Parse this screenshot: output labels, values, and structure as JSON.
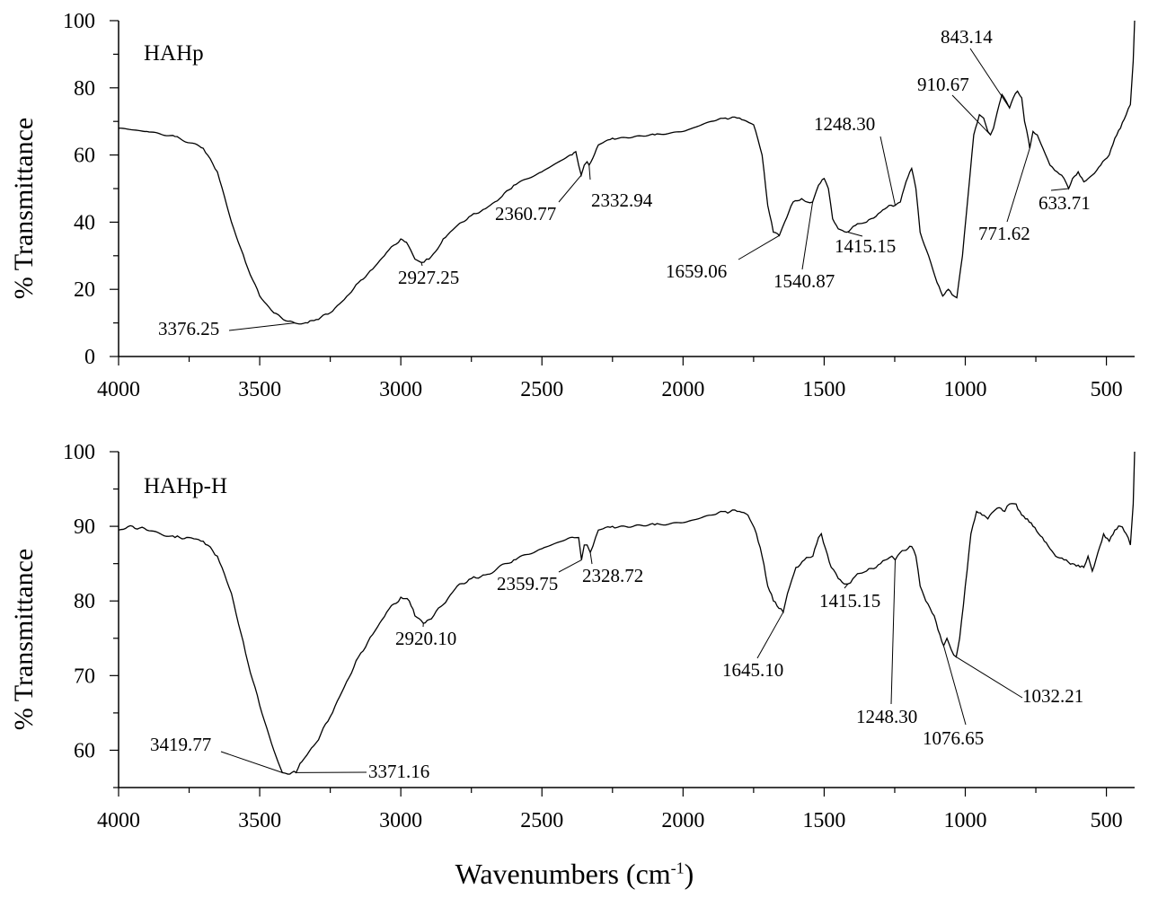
{
  "chart_data": [
    {
      "type": "line",
      "panel_label": "HAHp",
      "ylabel": "% Transmittance",
      "xlabel": "Wavenumbers (cm-1)",
      "xlim": [
        4000,
        400
      ],
      "ylim": [
        0,
        100
      ],
      "x_ticks": [
        4000,
        3500,
        3000,
        2500,
        2000,
        1500,
        1000,
        500
      ],
      "y_ticks": [
        0,
        20,
        40,
        60,
        80,
        100
      ],
      "series": [
        {
          "points": [
            [
              4000,
              68
            ],
            [
              3900,
              67
            ],
            [
              3800,
              65.5
            ],
            [
              3700,
              62
            ],
            [
              3650,
              55
            ],
            [
              3600,
              40
            ],
            [
              3550,
              28
            ],
            [
              3500,
              18
            ],
            [
              3450,
              13
            ],
            [
              3400,
              10.5
            ],
            [
              3376,
              10
            ],
            [
              3330,
              10
            ],
            [
              3300,
              11
            ],
            [
              3250,
              13
            ],
            [
              3200,
              17
            ],
            [
              3150,
              22
            ],
            [
              3100,
              26
            ],
            [
              3050,
              31
            ],
            [
              3000,
              35
            ],
            [
              2980,
              34
            ],
            [
              2950,
              29
            ],
            [
              2927,
              28
            ],
            [
              2900,
              29
            ],
            [
              2870,
              32
            ],
            [
              2850,
              35
            ],
            [
              2800,
              39
            ],
            [
              2750,
              42
            ],
            [
              2700,
              44
            ],
            [
              2650,
              47
            ],
            [
              2600,
              51
            ],
            [
              2500,
              55
            ],
            [
              2400,
              60
            ],
            [
              2380,
              61
            ],
            [
              2370,
              57
            ],
            [
              2360.77,
              54
            ],
            [
              2350,
              57
            ],
            [
              2340,
              58
            ],
            [
              2332.94,
              57
            ],
            [
              2320,
              59
            ],
            [
              2300,
              63
            ],
            [
              2250,
              65
            ],
            [
              2100,
              66
            ],
            [
              2000,
              67
            ],
            [
              1900,
              70
            ],
            [
              1850,
              71
            ],
            [
              1800,
              71
            ],
            [
              1750,
              69
            ],
            [
              1720,
              60
            ],
            [
              1700,
              45
            ],
            [
              1680,
              37
            ],
            [
              1659,
              36
            ],
            [
              1640,
              40
            ],
            [
              1610,
              46
            ],
            [
              1580,
              47
            ],
            [
              1560,
              46
            ],
            [
              1540.87,
              46
            ],
            [
              1520,
              51
            ],
            [
              1500,
              53
            ],
            [
              1485,
              50
            ],
            [
              1470,
              41
            ],
            [
              1450,
              38
            ],
            [
              1420,
              37
            ],
            [
              1390,
              39
            ],
            [
              1350,
              40
            ],
            [
              1300,
              43
            ],
            [
              1270,
              45
            ],
            [
              1248.3,
              45
            ],
            [
              1230,
              46
            ],
            [
              1210,
              52
            ],
            [
              1190,
              56
            ],
            [
              1175,
              50
            ],
            [
              1160,
              37
            ],
            [
              1130,
              30
            ],
            [
              1100,
              22
            ],
            [
              1080,
              18
            ],
            [
              1060,
              20
            ],
            [
              1040,
              18
            ],
            [
              1030,
              17.5
            ],
            [
              1010,
              30
            ],
            [
              990,
              48
            ],
            [
              970,
              66
            ],
            [
              950,
              72
            ],
            [
              935,
              71
            ],
            [
              920,
              67
            ],
            [
              910.67,
              66
            ],
            [
              900,
              68
            ],
            [
              880,
              75
            ],
            [
              870,
              78
            ],
            [
              855,
              76
            ],
            [
              843.14,
              74
            ],
            [
              830,
              77
            ],
            [
              815,
              79
            ],
            [
              800,
              77
            ],
            [
              790,
              70
            ],
            [
              775,
              64
            ],
            [
              771.62,
              62
            ],
            [
              760,
              67
            ],
            [
              745,
              66
            ],
            [
              725,
              62
            ],
            [
              700,
              57
            ],
            [
              675,
              55
            ],
            [
              650,
              53
            ],
            [
              633.71,
              50
            ],
            [
              620,
              53
            ],
            [
              600,
              55
            ],
            [
              580,
              52
            ],
            [
              550,
              54
            ],
            [
              520,
              57
            ],
            [
              490,
              60
            ],
            [
              470,
              65
            ],
            [
              450,
              68
            ],
            [
              430,
              72
            ],
            [
              415,
              75
            ],
            [
              405,
              88
            ],
            [
              400,
              100
            ]
          ]
        }
      ],
      "annotations": [
        {
          "text": "3376.25",
          "x": 3376.25,
          "y": 10
        },
        {
          "text": "2927.25",
          "x": 2927.25,
          "y": 28
        },
        {
          "text": "2360.77",
          "x": 2360.77,
          "y": 54
        },
        {
          "text": "2332.94",
          "x": 2332.94,
          "y": 57
        },
        {
          "text": "1659.06",
          "x": 1659.06,
          "y": 36
        },
        {
          "text": "1540.87",
          "x": 1540.87,
          "y": 46
        },
        {
          "text": "1415.15",
          "x": 1415.15,
          "y": 37
        },
        {
          "text": "1248.30",
          "x": 1248.3,
          "y": 45
        },
        {
          "text": "910.67",
          "x": 910.67,
          "y": 66
        },
        {
          "text": "843.14",
          "x": 843.14,
          "y": 74
        },
        {
          "text": "771.62",
          "x": 771.62,
          "y": 62
        },
        {
          "text": "633.71",
          "x": 633.71,
          "y": 50
        }
      ]
    },
    {
      "type": "line",
      "panel_label": "HAHp-H",
      "ylabel": "% Transmittance",
      "xlabel": "Wavenumbers (cm-1)",
      "xlim": [
        4000,
        400
      ],
      "ylim": [
        55,
        100
      ],
      "x_ticks": [
        4000,
        3500,
        3000,
        2500,
        2000,
        1500,
        1000,
        500
      ],
      "y_ticks": [
        60,
        70,
        80,
        90,
        100
      ],
      "series": [
        {
          "points": [
            [
              4000,
              89.5
            ],
            [
              3950,
              90
            ],
            [
              3900,
              89.5
            ],
            [
              3800,
              88.5
            ],
            [
              3750,
              88.5
            ],
            [
              3700,
              88
            ],
            [
              3650,
              86
            ],
            [
              3600,
              81
            ],
            [
              3550,
              73
            ],
            [
              3500,
              66
            ],
            [
              3450,
              60
            ],
            [
              3419.77,
              57
            ],
            [
              3400,
              56.8
            ],
            [
              3371.16,
              57
            ],
            [
              3350,
              58.5
            ],
            [
              3300,
              61
            ],
            [
              3250,
              64.5
            ],
            [
              3200,
              68.5
            ],
            [
              3150,
              72.5
            ],
            [
              3100,
              75.5
            ],
            [
              3050,
              78.5
            ],
            [
              3000,
              80.5
            ],
            [
              2970,
              80
            ],
            [
              2950,
              78
            ],
            [
              2920.1,
              77
            ],
            [
              2900,
              77.5
            ],
            [
              2850,
              79.5
            ],
            [
              2800,
              82
            ],
            [
              2750,
              83
            ],
            [
              2700,
              83.5
            ],
            [
              2600,
              85.5
            ],
            [
              2500,
              87
            ],
            [
              2400,
              88.5
            ],
            [
              2370,
              88.5
            ],
            [
              2359.75,
              85.5
            ],
            [
              2350,
              87.5
            ],
            [
              2340,
              87.5
            ],
            [
              2328.72,
              86.5
            ],
            [
              2310,
              88.5
            ],
            [
              2300,
              89.5
            ],
            [
              2250,
              90
            ],
            [
              2100,
              90.2
            ],
            [
              2000,
              90.5
            ],
            [
              1900,
              91.5
            ],
            [
              1850,
              92
            ],
            [
              1800,
              92
            ],
            [
              1770,
              91.5
            ],
            [
              1740,
              89
            ],
            [
              1720,
              86
            ],
            [
              1700,
              82
            ],
            [
              1680,
              80
            ],
            [
              1660,
              79
            ],
            [
              1645.1,
              78.5
            ],
            [
              1630,
              81
            ],
            [
              1600,
              84.5
            ],
            [
              1570,
              85.5
            ],
            [
              1540,
              86
            ],
            [
              1520,
              88.5
            ],
            [
              1510,
              89
            ],
            [
              1495,
              87
            ],
            [
              1475,
              84.5
            ],
            [
              1450,
              83
            ],
            [
              1430,
              82.3
            ],
            [
              1415.15,
              82.3
            ],
            [
              1390,
              83.3
            ],
            [
              1350,
              84
            ],
            [
              1300,
              85
            ],
            [
              1260,
              86
            ],
            [
              1248.3,
              85.5
            ],
            [
              1230,
              86.5
            ],
            [
              1210,
              86.8
            ],
            [
              1190,
              87.3
            ],
            [
              1175,
              86
            ],
            [
              1160,
              82
            ],
            [
              1140,
              80
            ],
            [
              1110,
              78
            ],
            [
              1090,
              75.5
            ],
            [
              1076.65,
              74
            ],
            [
              1065,
              75
            ],
            [
              1050,
              73.5
            ],
            [
              1032.21,
              72.5
            ],
            [
              1020,
              75
            ],
            [
              1000,
              82
            ],
            [
              980,
              89
            ],
            [
              960,
              92
            ],
            [
              940,
              91.5
            ],
            [
              920,
              91
            ],
            [
              900,
              92
            ],
            [
              880,
              92.5
            ],
            [
              860,
              92
            ],
            [
              843,
              93
            ],
            [
              820,
              93
            ],
            [
              800,
              91.5
            ],
            [
              780,
              91
            ],
            [
              760,
              90
            ],
            [
              740,
              89
            ],
            [
              720,
              88
            ],
            [
              700,
              87
            ],
            [
              680,
              86
            ],
            [
              650,
              85.5
            ],
            [
              620,
              85
            ],
            [
              600,
              84.8
            ],
            [
              580,
              84.5
            ],
            [
              565,
              86
            ],
            [
              550,
              84
            ],
            [
              530,
              86.5
            ],
            [
              510,
              89
            ],
            [
              490,
              88
            ],
            [
              470,
              89.5
            ],
            [
              450,
              90
            ],
            [
              430,
              89
            ],
            [
              415,
              87.5
            ],
            [
              405,
              93
            ],
            [
              400,
              100
            ]
          ]
        }
      ],
      "annotations": [
        {
          "text": "3419.77",
          "x": 3419.77,
          "y": 57
        },
        {
          "text": "3371.16",
          "x": 3371.16,
          "y": 57
        },
        {
          "text": "2920.10",
          "x": 2920.1,
          "y": 77
        },
        {
          "text": "2359.75",
          "x": 2359.75,
          "y": 85.5
        },
        {
          "text": "2328.72",
          "x": 2328.72,
          "y": 86.5
        },
        {
          "text": "1645.10",
          "x": 1645.1,
          "y": 78.5
        },
        {
          "text": "1415.15",
          "x": 1415.15,
          "y": 82.3
        },
        {
          "text": "1248.30",
          "x": 1248.3,
          "y": 85.5
        },
        {
          "text": "1076.65",
          "x": 1076.65,
          "y": 74
        },
        {
          "text": "1032.21",
          "x": 1032.21,
          "y": 72.5
        }
      ]
    }
  ],
  "figure": {
    "xlabel_main": "Wavenumbers (cm",
    "xlabel_sup": "-1",
    "xlabel_close": ")"
  }
}
